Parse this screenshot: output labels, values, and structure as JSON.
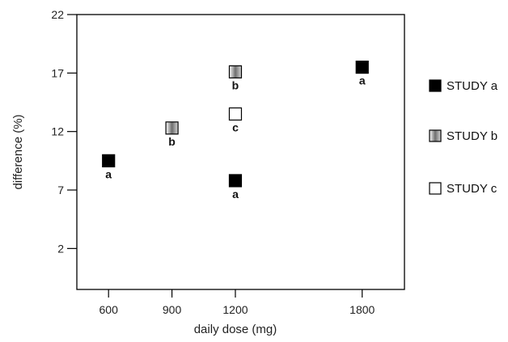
{
  "chart_data": {
    "type": "scatter",
    "title": "",
    "xlabel": "daily dose (mg)",
    "ylabel": "difference (%)",
    "x_ticks": [
      600,
      900,
      1200,
      1800
    ],
    "y_ticks": [
      2,
      7,
      12,
      17,
      22
    ],
    "xlim": [
      450,
      2000
    ],
    "ylim": [
      -1.5,
      22
    ],
    "grid": false,
    "legend_position": "right",
    "series": [
      {
        "name": "STUDY a",
        "marker": "filled-square",
        "color": "#000000",
        "label": "a",
        "points": [
          {
            "x": 600,
            "y": 9.5
          },
          {
            "x": 1200,
            "y": 7.8
          },
          {
            "x": 1800,
            "y": 17.5
          }
        ]
      },
      {
        "name": "STUDY b",
        "marker": "gradient-square",
        "color": "#888888",
        "label": "b",
        "points": [
          {
            "x": 900,
            "y": 12.3
          },
          {
            "x": 1200,
            "y": 17.1
          }
        ]
      },
      {
        "name": "STUDY c",
        "marker": "open-square",
        "color": "#ffffff",
        "label": "c",
        "points": [
          {
            "x": 1200,
            "y": 13.5
          }
        ]
      }
    ]
  }
}
